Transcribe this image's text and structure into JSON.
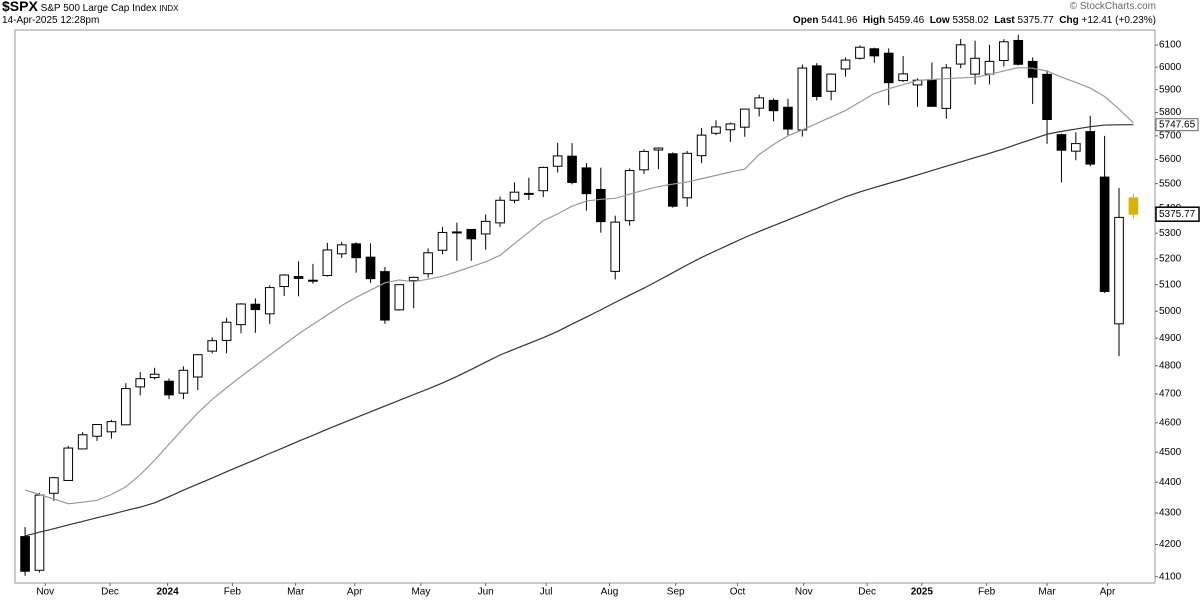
{
  "header": {
    "symbol": "$SPX",
    "name": "S&P 500 Large Cap Index",
    "exchange": "INDX",
    "timestamp": "14-Apr-2025 12:28pm",
    "open_label": "Open",
    "high_label": "High",
    "low_label": "Low",
    "last_label": "Last",
    "chg_label": "Chg",
    "chg": "+12.41 (+0.23%)",
    "copyright": "© StockCharts.com"
  },
  "chart_data": {
    "type": "candlestick",
    "log": true,
    "colors": {
      "up": "#000000",
      "down": "#000000",
      "latest": "#d9b300"
    },
    "categories": [
      null,
      null,
      null,
      null,
      null,
      null,
      null,
      null,
      null,
      null,
      null,
      null,
      null,
      null,
      null,
      null,
      null,
      null,
      null,
      null,
      null,
      null,
      null,
      null,
      null,
      null,
      null,
      null,
      null,
      null,
      null,
      null,
      null,
      null,
      null,
      null,
      null,
      null,
      null,
      null,
      null,
      null,
      null,
      null,
      null,
      null,
      null,
      null,
      null,
      null,
      null,
      null,
      null,
      null,
      null,
      null,
      null,
      null,
      null,
      null,
      null,
      null,
      null,
      null,
      null,
      null,
      null,
      null,
      null,
      null,
      null,
      null,
      null,
      null,
      null,
      null,
      null,
      null
    ],
    "open": [
      4225,
      4120,
      4364,
      4406,
      4511,
      4554,
      4569,
      4593,
      4725,
      4758,
      4745,
      4703,
      4760,
      4853,
      4892,
      4950,
      5026,
      4990,
      5093,
      5131,
      5114,
      5135,
      5219,
      5258,
      5206,
      5150,
      5005,
      5115,
      5142,
      5233,
      5305,
      5315,
      5297,
      5341,
      5432,
      5460,
      5471,
      5572,
      5614,
      5565,
      5476,
      5151,
      5350,
      5557,
      5640,
      5624,
      5442,
      5616,
      5711,
      5726,
      5737,
      5819,
      5853,
      5823,
      5725,
      6006,
      5893,
      5992,
      6040,
      6083,
      6063,
      5940,
      5921,
      5944,
      5818,
      6014,
      5969,
      5969,
      6030,
      6121,
      6026,
      5968,
      5705,
      5635,
      5718,
      5527,
      4953,
      5441.96
    ],
    "high": [
      4255,
      4365,
      4418,
      4521,
      4568,
      4595,
      4610,
      4738,
      4778,
      4793,
      4755,
      4798,
      4842,
      4903,
      4975,
      5030,
      5048,
      5098,
      5140,
      5190,
      5180,
      5262,
      5265,
      5264,
      5260,
      5168,
      5100,
      5131,
      5240,
      5325,
      5342,
      5315,
      5375,
      5447,
      5505,
      5524,
      5570,
      5670,
      5669,
      5585,
      5566,
      5370,
      5563,
      5643,
      5651,
      5630,
      5636,
      5734,
      5767,
      5757,
      5815,
      5878,
      5862,
      5860,
      6012,
      6018,
      5972,
      6044,
      6099,
      6088,
      6085,
      6050,
      5950,
      6021,
      6014,
      6128,
      6120,
      6101,
      6127,
      6147,
      6044,
      5986,
      5710,
      5715,
      5786,
      5700,
      5482,
      5459.46
    ],
    "low": [
      4103,
      4113,
      4339,
      4406,
      4510,
      4538,
      4546,
      4593,
      4695,
      4751,
      4682,
      4682,
      4714,
      4845,
      4845,
      4918,
      4920,
      4953,
      5057,
      5056,
      5104,
      5131,
      5203,
      5146,
      5107,
      4953,
      5002,
      5011,
      5127,
      5218,
      5192,
      5192,
      5235,
      5325,
      5420,
      5433,
      5445,
      5546,
      5497,
      5390,
      5302,
      5120,
      5330,
      5540,
      5560,
      5402,
      5406,
      5585,
      5703,
      5674,
      5696,
      5783,
      5762,
      5703,
      5697,
      5853,
      5853,
      5958,
      6034,
      6020,
      5832,
      5934,
      5825,
      5827,
      5773,
      5995,
      5923,
      5923,
      6003,
      6008,
      5837,
      5666,
      5505,
      5597,
      5572,
      5069,
      4835,
      5358.02
    ],
    "close": [
      4117,
      4358,
      4415,
      4514,
      4559,
      4594,
      4604,
      4719,
      4754,
      4770,
      4697,
      4784,
      4840,
      4891,
      4959,
      5027,
      5006,
      5089,
      5137,
      5124,
      5117,
      5234,
      5254,
      5204,
      5123,
      4967,
      5100,
      5128,
      5223,
      5303,
      5305,
      5278,
      5347,
      5432,
      5465,
      5460,
      5567,
      5615,
      5505,
      5459,
      5346,
      5344,
      5554,
      5634,
      5648,
      5408,
      5626,
      5703,
      5738,
      5751,
      5815,
      5864,
      5808,
      5729,
      5996,
      5870,
      5969,
      6032,
      6090,
      6051,
      5931,
      5970,
      5942,
      5827,
      5997,
      6101,
      6040,
      6026,
      6115,
      6013,
      5955,
      5770,
      5639,
      5667,
      5581,
      5074,
      5363,
      5375.77
    ],
    "series": [
      {
        "color": "#9a9a9a",
        "values": [
          4375,
          4360,
          4345,
          4330,
          4335,
          4341,
          4360,
          4385,
          4425,
          4473,
          4527,
          4581,
          4634,
          4681,
          4722,
          4762,
          4800,
          4839,
          4877,
          4916,
          4951,
          4986,
          5021,
          5052,
          5079,
          5107,
          5118,
          5111,
          5121,
          5132,
          5150,
          5169,
          5188,
          5213,
          5259,
          5304,
          5350,
          5377,
          5408,
          5429,
          5436,
          5440,
          5457,
          5473,
          5488,
          5498,
          5507,
          5520,
          5534,
          5548,
          5560,
          5621,
          5663,
          5700,
          5725,
          5753,
          5781,
          5809,
          5846,
          5883,
          5904,
          5922,
          5941,
          5945,
          5949,
          5952,
          5955,
          5967,
          5983,
          5998,
          5995,
          5983,
          5956,
          5932,
          5907,
          5870,
          5815,
          5755
        ]
      },
      {
        "color": "#333333",
        "values": [
          4227,
          4239,
          4250,
          4262,
          4273,
          4285,
          4296,
          4308,
          4319,
          4333,
          4353,
          4374,
          4394,
          4414,
          4435,
          4455,
          4475,
          4496,
          4516,
          4537,
          4557,
          4578,
          4598,
          4618,
          4638,
          4658,
          4678,
          4698,
          4718,
          4739,
          4762,
          4787,
          4813,
          4839,
          4860,
          4881,
          4902,
          4925,
          4952,
          4978,
          5005,
          5033,
          5060,
          5087,
          5116,
          5146,
          5176,
          5205,
          5231,
          5257,
          5283,
          5307,
          5330,
          5353,
          5376,
          5399,
          5423,
          5446,
          5466,
          5484,
          5501,
          5518,
          5536,
          5554,
          5572,
          5590,
          5608,
          5626,
          5645,
          5666,
          5686,
          5707,
          5719,
          5729,
          5739,
          5746,
          5747,
          5747.65
        ]
      }
    ],
    "xlim": [
      -0.7,
      78.5
    ],
    "xticks": [
      {
        "value": 1.4,
        "label": "Nov"
      },
      {
        "value": 5.9,
        "label": "Dec"
      },
      {
        "value": 9.9,
        "label": "2024"
      },
      {
        "value": 14.4,
        "label": "Feb"
      },
      {
        "value": 18.8,
        "label": "Mar"
      },
      {
        "value": 22.9,
        "label": "Apr"
      },
      {
        "value": 27.5,
        "label": "May"
      },
      {
        "value": 32.0,
        "label": "Jun"
      },
      {
        "value": 36.2,
        "label": "Jul"
      },
      {
        "value": 40.6,
        "label": "Aug"
      },
      {
        "value": 45.2,
        "label": "Sep"
      },
      {
        "value": 49.5,
        "label": "Oct"
      },
      {
        "value": 54.1,
        "label": "Nov"
      },
      {
        "value": 58.5,
        "label": "Dec"
      },
      {
        "value": 62.3,
        "label": "2025"
      },
      {
        "value": 66.8,
        "label": "Feb"
      },
      {
        "value": 71.0,
        "label": "Mar"
      },
      {
        "value": 75.2,
        "label": "Apr"
      }
    ],
    "ylim": [
      4081,
      6169
    ],
    "yticks": [
      4100,
      4200,
      4300,
      4400,
      4500,
      4600,
      4700,
      4800,
      4900,
      5000,
      5100,
      5200,
      5300,
      5400,
      5500,
      5600,
      5700,
      5800,
      5900,
      6000,
      6100
    ]
  }
}
